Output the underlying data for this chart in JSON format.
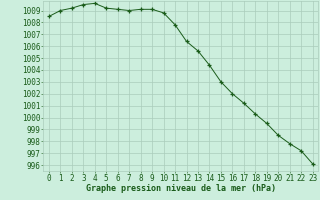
{
  "x": [
    0,
    1,
    2,
    3,
    4,
    5,
    6,
    7,
    8,
    9,
    10,
    11,
    12,
    13,
    14,
    15,
    16,
    17,
    18,
    19,
    20,
    21,
    22,
    23
  ],
  "y": [
    1008.5,
    1009.0,
    1009.2,
    1009.5,
    1009.6,
    1009.2,
    1009.1,
    1009.0,
    1009.1,
    1009.1,
    1008.8,
    1007.8,
    1006.4,
    1005.6,
    1004.4,
    1003.0,
    1002.0,
    1001.2,
    1000.3,
    999.5,
    998.5,
    997.8,
    997.2,
    996.1
  ],
  "xlabel": "Graphe pression niveau de la mer (hPa)",
  "ylim_min": 995.5,
  "ylim_max": 1009.8,
  "yticks": [
    996,
    997,
    998,
    999,
    1000,
    1001,
    1002,
    1003,
    1004,
    1005,
    1006,
    1007,
    1008,
    1009
  ],
  "xticks": [
    0,
    1,
    2,
    3,
    4,
    5,
    6,
    7,
    8,
    9,
    10,
    11,
    12,
    13,
    14,
    15,
    16,
    17,
    18,
    19,
    20,
    21,
    22,
    23
  ],
  "line_color": "#1a5c1a",
  "marker_color": "#1a5c1a",
  "bg_color": "#cceedd",
  "grid_color": "#aaccbb",
  "tick_label_color": "#1a5c1a",
  "xlabel_color": "#1a5c1a",
  "font_size_ticks": 5.5,
  "font_size_xlabel": 6.0
}
